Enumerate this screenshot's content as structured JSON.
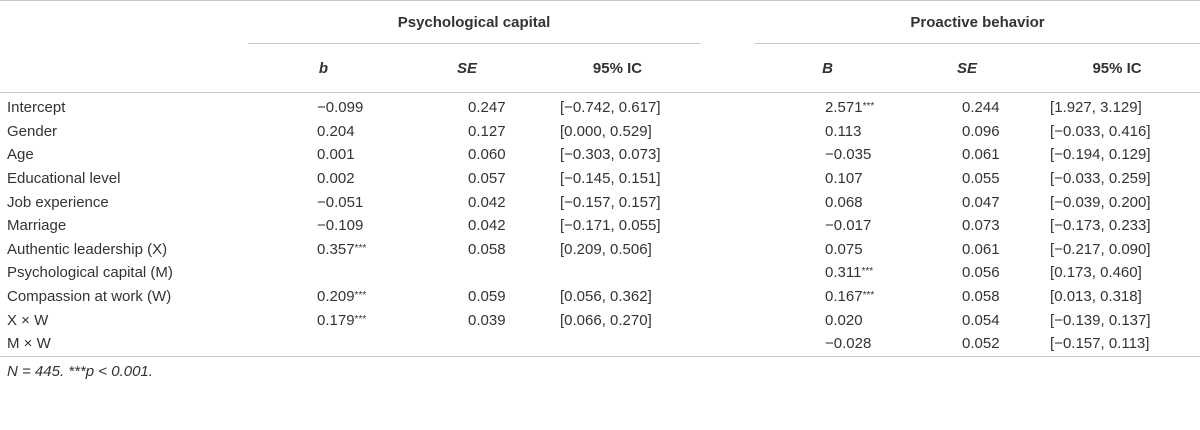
{
  "table": {
    "groups": [
      {
        "label": "Psychological capital"
      },
      {
        "label": "Proactive behavior"
      }
    ],
    "subheaders": [
      "b",
      "SE",
      "95% IC",
      "B",
      "SE",
      "95% IC"
    ],
    "rows": [
      {
        "label": "Intercept",
        "b1": "−0.099",
        "s1": "",
        "se1": "0.247",
        "ci1": "[−0.742, 0.617]",
        "b2": "2.571",
        "s2": "***",
        "se2": "0.244",
        "ci2": "[1.927, 3.129]"
      },
      {
        "label": "Gender",
        "b1": "0.204",
        "s1": "",
        "se1": "0.127",
        "ci1": "[0.000, 0.529]",
        "b2": "0.113",
        "s2": "",
        "se2": "0.096",
        "ci2": "[−0.033, 0.416]"
      },
      {
        "label": "Age",
        "b1": "0.001",
        "s1": "",
        "se1": "0.060",
        "ci1": "[−0.303, 0.073]",
        "b2": "−0.035",
        "s2": "",
        "se2": "0.061",
        "ci2": "[−0.194, 0.129]"
      },
      {
        "label": "Educational level",
        "b1": "0.002",
        "s1": "",
        "se1": "0.057",
        "ci1": "[−0.145, 0.151]",
        "b2": "0.107",
        "s2": "",
        "se2": "0.055",
        "ci2": "[−0.033, 0.259]"
      },
      {
        "label": "Job experience",
        "b1": "−0.051",
        "s1": "",
        "se1": "0.042",
        "ci1": "[−0.157, 0.157]",
        "b2": "0.068",
        "s2": "",
        "se2": "0.047",
        "ci2": "[−0.039, 0.200]"
      },
      {
        "label": "Marriage",
        "b1": "−0.109",
        "s1": "",
        "se1": "0.042",
        "ci1": "[−0.171, 0.055]",
        "b2": "−0.017",
        "s2": "",
        "se2": "0.073",
        "ci2": "[−0.173, 0.233]"
      },
      {
        "label": "Authentic leadership (X)",
        "b1": "0.357",
        "s1": "***",
        "se1": "0.058",
        "ci1": "[0.209, 0.506]",
        "b2": "0.075",
        "s2": "",
        "se2": "0.061",
        "ci2": "[−0.217, 0.090]"
      },
      {
        "label": "Psychological capital (M)",
        "b1": "",
        "s1": "",
        "se1": "",
        "ci1": "",
        "b2": "0.311",
        "s2": "***",
        "se2": "0.056",
        "ci2": "[0.173, 0.460]"
      },
      {
        "label": "Compassion at work (W)",
        "b1": "0.209",
        "s1": "***",
        "se1": "0.059",
        "ci1": "[0.056, 0.362]",
        "b2": "0.167",
        "s2": "***",
        "se2": "0.058",
        "ci2": "[0.013, 0.318]"
      },
      {
        "label": "X × W",
        "b1": "0.179",
        "s1": "***",
        "se1": "0.039",
        "ci1": "[0.066, 0.270]",
        "b2": "0.020",
        "s2": "",
        "se2": "0.054",
        "ci2": "[−0.139, 0.137]"
      },
      {
        "label": "M × W",
        "b1": "",
        "s1": "",
        "se1": "",
        "ci1": "",
        "b2": "−0.028",
        "s2": "",
        "se2": "0.052",
        "ci2": "[−0.157, 0.113]"
      }
    ],
    "footnote": "N = 445. ***p < 0.001."
  }
}
